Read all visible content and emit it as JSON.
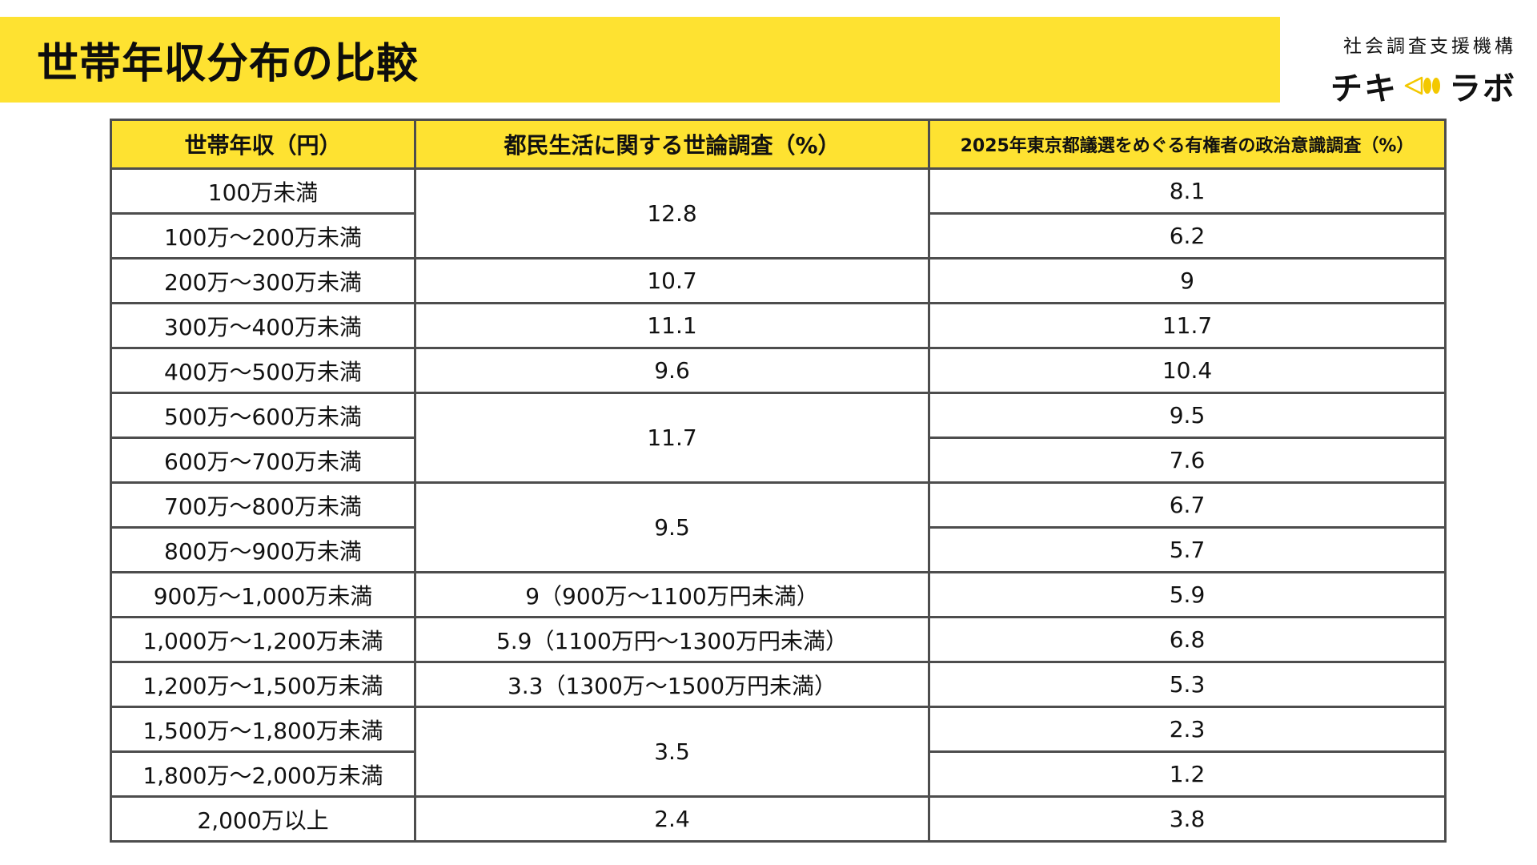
{
  "title": "世帯年収分布の比較",
  "brand": {
    "org": "社会調査支援機構",
    "logo_left": "チキ",
    "logo_right": "ラボ"
  },
  "colors": {
    "accent": "#fee231",
    "border": "#4d4d4d"
  },
  "table": {
    "headers": [
      "世帯年収（円）",
      "都民生活に関する世論調査（%）",
      "2025年東京都議選をめぐる有権者の政治意識調査（%）"
    ],
    "rows": [
      {
        "income": "100万未満",
        "survey1": "12.8",
        "survey1_span": 2,
        "survey2": "8.1"
      },
      {
        "income": "100万～200万未満",
        "survey2": "6.2"
      },
      {
        "income": "200万～300万未満",
        "survey1": "10.7",
        "survey1_span": 1,
        "survey2": "9"
      },
      {
        "income": "300万～400万未満",
        "survey1": "11.1",
        "survey1_span": 1,
        "survey2": "11.7"
      },
      {
        "income": "400万～500万未満",
        "survey1": "9.6",
        "survey1_span": 1,
        "survey2": "10.4"
      },
      {
        "income": "500万～600万未満",
        "survey1": "11.7",
        "survey1_span": 2,
        "survey2": "9.5"
      },
      {
        "income": "600万～700万未満",
        "survey2": "7.6"
      },
      {
        "income": "700万～800万未満",
        "survey1": "9.5",
        "survey1_span": 2,
        "survey2": "6.7"
      },
      {
        "income": "800万～900万未満",
        "survey2": "5.7"
      },
      {
        "income": "900万～1,000万未満",
        "survey1": "9（900万～1100万円未満）",
        "survey1_span": 1,
        "survey2": "5.9"
      },
      {
        "income": "1,000万～1,200万未満",
        "survey1": "5.9（1100万円～1300万円未満）",
        "survey1_span": 1,
        "survey2": "6.8"
      },
      {
        "income": "1,200万～1,500万未満",
        "survey1": "3.3（1300万～1500万円未満）",
        "survey1_span": 1,
        "survey2": "5.3"
      },
      {
        "income": "1,500万～1,800万未満",
        "survey1": "3.5",
        "survey1_span": 2,
        "survey2": "2.3"
      },
      {
        "income": "1,800万～2,000万未満",
        "survey2": "1.2"
      },
      {
        "income": "2,000万以上",
        "survey1": "2.4",
        "survey1_span": 1,
        "survey2": "3.8"
      }
    ]
  }
}
